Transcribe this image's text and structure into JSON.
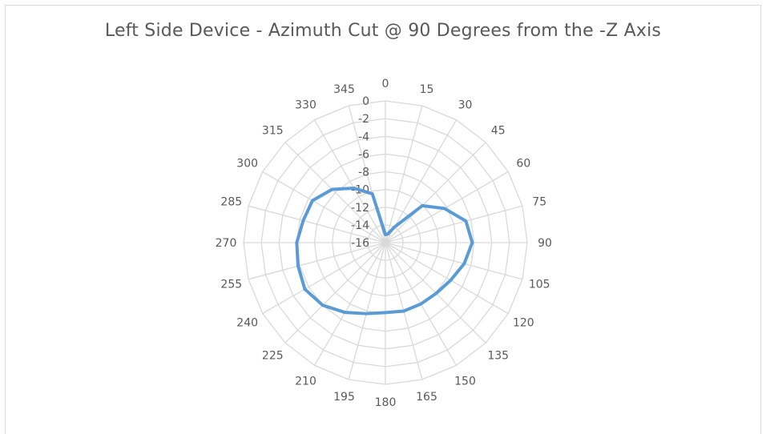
{
  "chart_data": {
    "type": "radar",
    "title": "Left Side Device - Azimuth Cut @ 90 Degrees from the -Z Axis",
    "categories": [
      "0",
      "15",
      "30",
      "45",
      "60",
      "75",
      "90",
      "105",
      "120",
      "135",
      "150",
      "165",
      "180",
      "195",
      "210",
      "225",
      "240",
      "255",
      "270",
      "285",
      "300",
      "315",
      "330",
      "345"
    ],
    "radial_ticks": [
      "0",
      "-2",
      "-4",
      "-6",
      "-8",
      "-10",
      "-12",
      "-14",
      "-16"
    ],
    "rlim": [
      -16,
      0
    ],
    "grid": true,
    "series": [
      {
        "color": "#5b9bd5",
        "values": [
          -15.1,
          -15.0,
          -14.0,
          -10.1,
          -8.3,
          -6.6,
          -6.2,
          -6.8,
          -7.5,
          -7.9,
          -8.0,
          -8.0,
          -8.1,
          -7.7,
          -6.9,
          -6.0,
          -5.5,
          -5.8,
          -6.0,
          -6.4,
          -6.5,
          -7.5,
          -8.9,
          -10.3
        ]
      }
    ]
  }
}
